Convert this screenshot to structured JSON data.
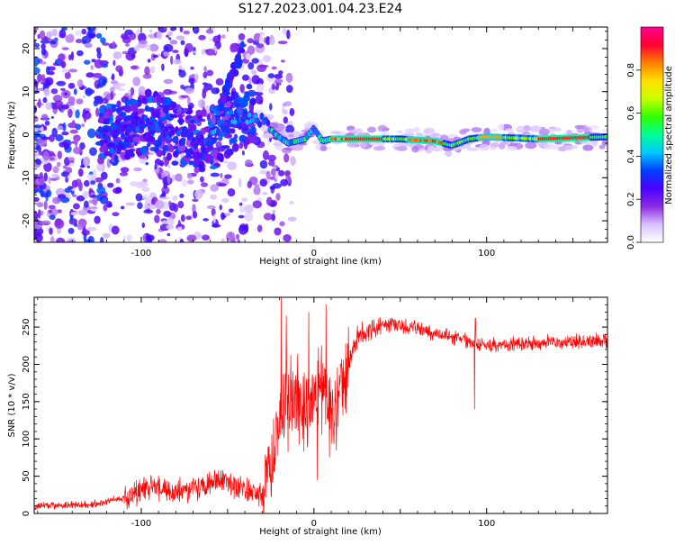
{
  "title": "S127.2023.001.04.23.E24",
  "chart_data": [
    {
      "type": "heatmap",
      "xlabel": "Height of straight line (km)",
      "ylabel": "Frequency (Hz)",
      "xlim": [
        -162,
        170
      ],
      "ylim": [
        -25,
        25
      ],
      "x_ticks": [
        -100,
        0,
        100
      ],
      "y_ticks": [
        -20,
        -10,
        0,
        10,
        20
      ],
      "colorbar": {
        "label": "Normalized spectral amplitude",
        "range": [
          0,
          1
        ],
        "ticks": [
          "0.0",
          "0.2",
          "0.4",
          "0.6",
          "0.8"
        ],
        "colormap": [
          "#ffffff",
          "#d9c2ff",
          "#8a2be2",
          "#4b00ff",
          "#0040ff",
          "#00c8ff",
          "#00ff9a",
          "#2fff00",
          "#c8ff00",
          "#ffe000",
          "#ff8000",
          "#ff0030",
          "#ff0090"
        ]
      },
      "signal_center": [
        {
          "x": -120,
          "y": 0.0
        },
        {
          "x": -95,
          "y": 3.0
        },
        {
          "x": -80,
          "y": 0.0
        },
        {
          "x": -65,
          "y": -2.0
        },
        {
          "x": -55,
          "y": 0.0
        },
        {
          "x": -40,
          "y": 4.5
        },
        {
          "x": -30,
          "y": 3.5
        },
        {
          "x": -22,
          "y": 0.0
        },
        {
          "x": -15,
          "y": -2.0
        },
        {
          "x": -5,
          "y": -1.0
        },
        {
          "x": 0,
          "y": 1.5
        },
        {
          "x": 5,
          "y": -1.5
        },
        {
          "x": 10,
          "y": -1.0
        },
        {
          "x": 50,
          "y": -1.0
        },
        {
          "x": 70,
          "y": -1.5
        },
        {
          "x": 80,
          "y": -2.5
        },
        {
          "x": 90,
          "y": -1.0
        },
        {
          "x": 100,
          "y": -0.5
        },
        {
          "x": 130,
          "y": -1.0
        },
        {
          "x": 170,
          "y": -0.5
        }
      ]
    },
    {
      "type": "line",
      "xlabel": "Height of straight line (km)",
      "ylabel": "SNR (10 * v/v)",
      "xlim": [
        -162,
        170
      ],
      "ylim": [
        0,
        290
      ],
      "x_ticks": [
        -100,
        0,
        100
      ],
      "y_ticks": [
        0,
        50,
        100,
        150,
        200,
        250
      ],
      "color": "#ff0000",
      "trend": [
        {
          "x": -162,
          "y": 10
        },
        {
          "x": -130,
          "y": 12
        },
        {
          "x": -110,
          "y": 20
        },
        {
          "x": -95,
          "y": 35
        },
        {
          "x": -80,
          "y": 28
        },
        {
          "x": -65,
          "y": 35
        },
        {
          "x": -55,
          "y": 45
        },
        {
          "x": -45,
          "y": 38
        },
        {
          "x": -30,
          "y": 22
        },
        {
          "x": -25,
          "y": 60
        },
        {
          "x": -20,
          "y": 120
        },
        {
          "x": -15,
          "y": 150
        },
        {
          "x": -10,
          "y": 150
        },
        {
          "x": -5,
          "y": 140
        },
        {
          "x": 0,
          "y": 170
        },
        {
          "x": 5,
          "y": 160
        },
        {
          "x": 10,
          "y": 130
        },
        {
          "x": 15,
          "y": 170
        },
        {
          "x": 20,
          "y": 200
        },
        {
          "x": 25,
          "y": 235
        },
        {
          "x": 35,
          "y": 252
        },
        {
          "x": 45,
          "y": 255
        },
        {
          "x": 55,
          "y": 250
        },
        {
          "x": 65,
          "y": 245
        },
        {
          "x": 75,
          "y": 238
        },
        {
          "x": 85,
          "y": 235
        },
        {
          "x": 95,
          "y": 225
        },
        {
          "x": 105,
          "y": 225
        },
        {
          "x": 120,
          "y": 228
        },
        {
          "x": 140,
          "y": 230
        },
        {
          "x": 170,
          "y": 232
        }
      ],
      "spikes": [
        {
          "x": -19,
          "y": 290
        },
        {
          "x": -16,
          "y": 265
        },
        {
          "x": -3,
          "y": 270
        },
        {
          "x": 2,
          "y": 45
        },
        {
          "x": 7,
          "y": 280
        },
        {
          "x": 13,
          "y": 85
        },
        {
          "x": 93,
          "y": 140
        },
        {
          "x": 93.5,
          "y": 262
        }
      ]
    }
  ]
}
